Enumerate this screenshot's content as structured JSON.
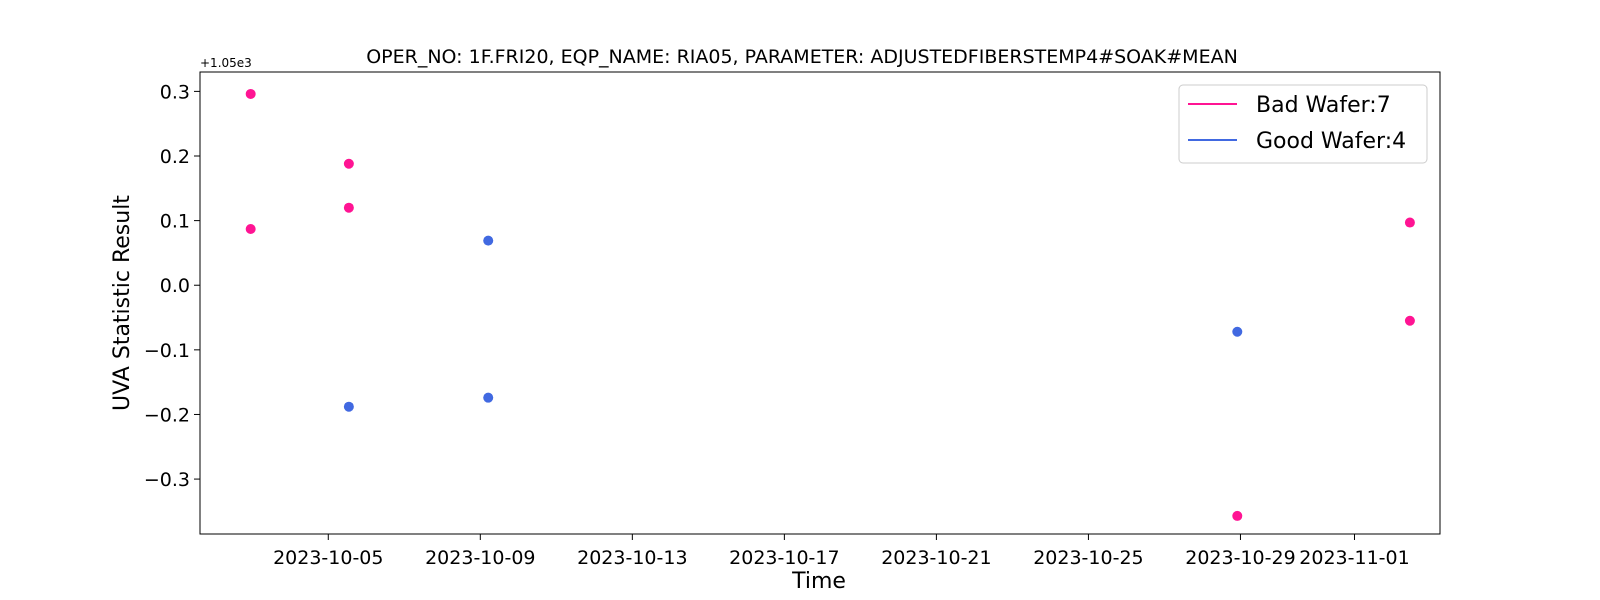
{
  "chart_data": {
    "type": "scatter",
    "title": "OPER_NO: 1F.FRI20,  EQP_NAME: RIA05,  PARAMETER: ADJUSTEDFIBERSTEMP4#SOAK#MEAN",
    "xlabel": "Time",
    "ylabel": "UVA Statistic Result",
    "y_offset_label": "+1.05e3",
    "y_offset": 1050,
    "x_type": "date",
    "xlim": [
      "2023-10-01T15:00",
      "2023-11-03T06:00"
    ],
    "ylim": [
      1049.615,
      1050.33
    ],
    "x_ticks": [
      "2023-10-05",
      "2023-10-09",
      "2023-10-13",
      "2023-10-17",
      "2023-10-21",
      "2023-10-25",
      "2023-10-29",
      "2023-11-01"
    ],
    "y_ticks": [
      "0.3",
      "0.2",
      "0.1",
      "0.0",
      "−0.1",
      "−0.2",
      "−0.3"
    ],
    "y_tick_values": [
      0.3,
      0.2,
      0.1,
      0.0,
      -0.1,
      -0.2,
      -0.3
    ],
    "grid": false,
    "legend_position": "upper right",
    "series": [
      {
        "name": "Bad Wafer:7",
        "color": "#ff1493",
        "points": [
          {
            "x": "2023-10-02T23:00",
            "y": 1050.296
          },
          {
            "x": "2023-10-02T23:00",
            "y": 1050.087
          },
          {
            "x": "2023-10-05T13:00",
            "y": 1050.188
          },
          {
            "x": "2023-10-05T13:00",
            "y": 1050.12
          },
          {
            "x": "2023-10-28T22:00",
            "y": 1049.643
          },
          {
            "x": "2023-11-02T11:00",
            "y": 1050.097
          },
          {
            "x": "2023-11-02T11:00",
            "y": 1049.945
          }
        ]
      },
      {
        "name": "Good Wafer:4",
        "color": "#4169e1",
        "points": [
          {
            "x": "2023-10-05T13:00",
            "y": 1049.812
          },
          {
            "x": "2023-10-09T05:00",
            "y": 1050.069
          },
          {
            "x": "2023-10-09T05:00",
            "y": 1049.826
          },
          {
            "x": "2023-10-28T22:00",
            "y": 1049.928
          }
        ]
      }
    ]
  }
}
